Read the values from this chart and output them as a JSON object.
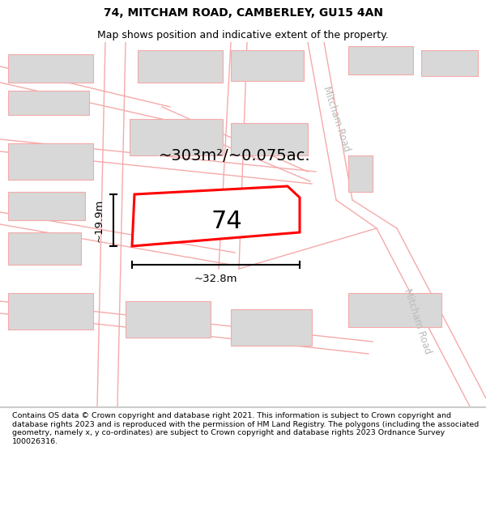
{
  "title": "74, MITCHAM ROAD, CAMBERLEY, GU15 4AN",
  "subtitle": "Map shows position and indicative extent of the property.",
  "footer": "Contains OS data © Crown copyright and database right 2021. This information is subject to Crown copyright and database rights 2023 and is reproduced with the permission of HM Land Registry. The polygons (including the associated geometry, namely x, y co-ordinates) are subject to Crown copyright and database rights 2023 Ordnance Survey 100026316.",
  "area_label": "~303m²/~0.075ac.",
  "width_label": "~32.8m",
  "height_label": "~19.9m",
  "property_number": "74",
  "map_bg": "#ffffff",
  "road_stroke": "#f5aaaa",
  "building_fill": "#d8d8d8",
  "building_stroke": "#f5aaaa",
  "highlight_stroke": "#ff0000",
  "road_label_color": "#bbbbbb",
  "title_fontsize": 10,
  "subtitle_fontsize": 9,
  "footer_fontsize": 6.8
}
